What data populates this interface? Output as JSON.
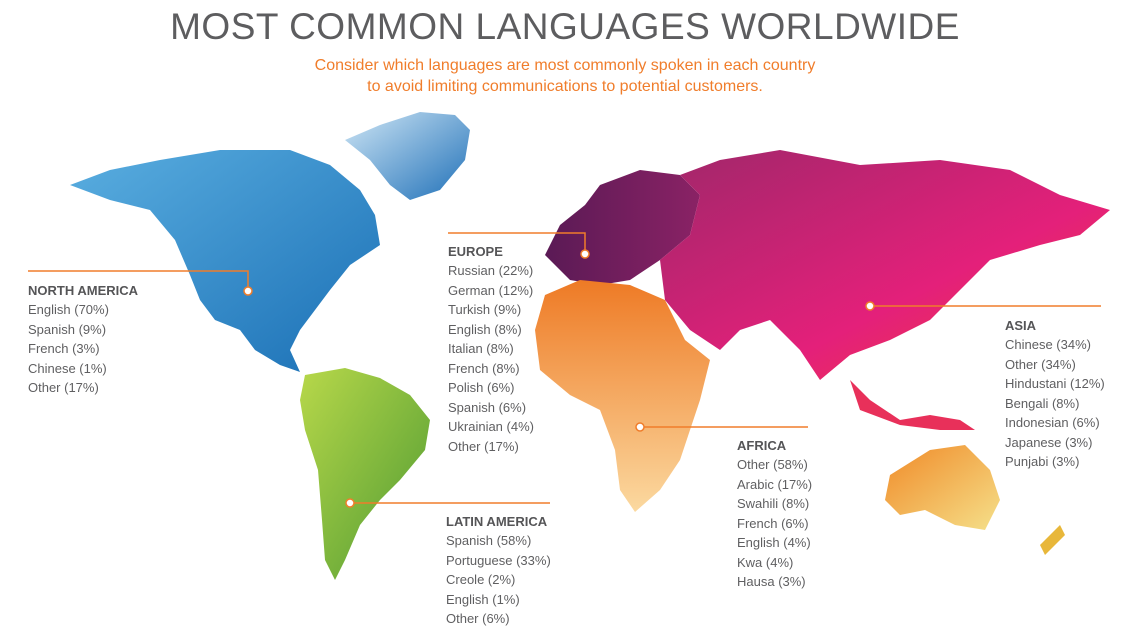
{
  "title": "MOST COMMON LANGUAGES WORLDWIDE",
  "subtitle_lines": [
    "Consider which languages are most commonly spoken in each country",
    "to avoid limiting communications to potential customers."
  ],
  "colors": {
    "accent": "#f07d2b",
    "text": "#5f5f61",
    "north_america": "#2a86c8",
    "latin_america": "#8cc63f",
    "europe": "#6b1e5e",
    "africa": "#f5a54a",
    "asia": "#e0305a",
    "oceania": "#f2c83a"
  },
  "regions": [
    {
      "name": "NORTH AMERICA",
      "languages": [
        "English (70%)",
        "Spanish (9%)",
        "French (3%)",
        "Chinese (1%)",
        "Other (17%)"
      ]
    },
    {
      "name": "EUROPE",
      "languages": [
        "Russian (22%)",
        "German (12%)",
        "Turkish (9%)",
        "English (8%)",
        "Italian (8%)",
        "French (8%)",
        "Polish (6%)",
        "Spanish (6%)",
        "Ukrainian (4%)",
        "Other (17%)"
      ]
    },
    {
      "name": "ASIA",
      "languages": [
        "Chinese (34%)",
        "Other (34%)",
        "Hindustani (12%)",
        "Bengali (8%)",
        "Indonesian (6%)",
        "Japanese (3%)",
        "Punjabi (3%)"
      ]
    },
    {
      "name": "AFRICA",
      "languages": [
        "Other (58%)",
        "Arabic (17%)",
        "Swahili (8%)",
        "French (6%)",
        "English (4%)",
        "Kwa (4%)",
        "Hausa (3%)"
      ]
    },
    {
      "name": "LATIN AMERICA",
      "languages": [
        "Spanish (58%)",
        "Portuguese (33%)",
        "Creole (2%)",
        "English (1%)",
        "Other (6%)"
      ]
    }
  ]
}
